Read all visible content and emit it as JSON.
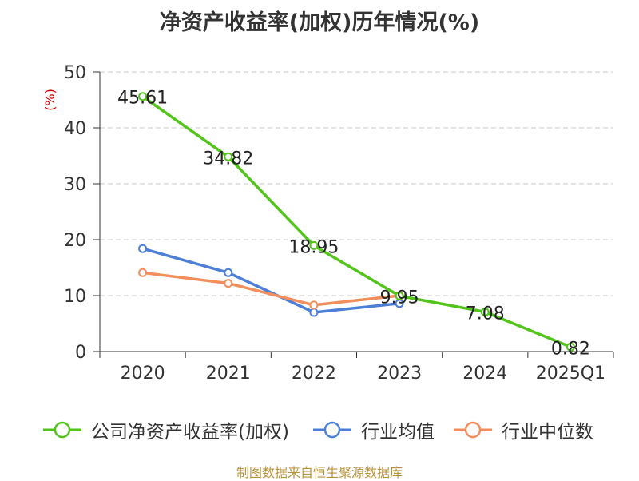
{
  "chart_data": {
    "type": "line",
    "title": "净资产收益率(加权)历年情况(%)",
    "ylabel": "(%)",
    "xlabel": "",
    "categories": [
      "2020",
      "2021",
      "2022",
      "2023",
      "2024",
      "2025Q1"
    ],
    "ylim": [
      0,
      50
    ],
    "yticks": [
      0,
      10,
      20,
      30,
      40,
      50
    ],
    "grid": true,
    "legend_position": "bottom",
    "series": [
      {
        "name": "公司净资产收益率(加权)",
        "color": "#52c41a",
        "values": [
          45.61,
          34.82,
          18.95,
          9.95,
          7.08,
          0.82
        ],
        "labels": [
          "45.61",
          "34.82",
          "18.95",
          "9.95",
          "7.08",
          "0.82"
        ]
      },
      {
        "name": "行业均值",
        "color": "#4e7fd6",
        "values": [
          18.4,
          14.1,
          7.0,
          8.6,
          null,
          null
        ]
      },
      {
        "name": "行业中位数",
        "color": "#f28e5b",
        "values": [
          14.1,
          12.2,
          8.3,
          10.0,
          null,
          null
        ]
      }
    ]
  },
  "footer": {
    "source": "制图数据来自恒生聚源数据库"
  }
}
